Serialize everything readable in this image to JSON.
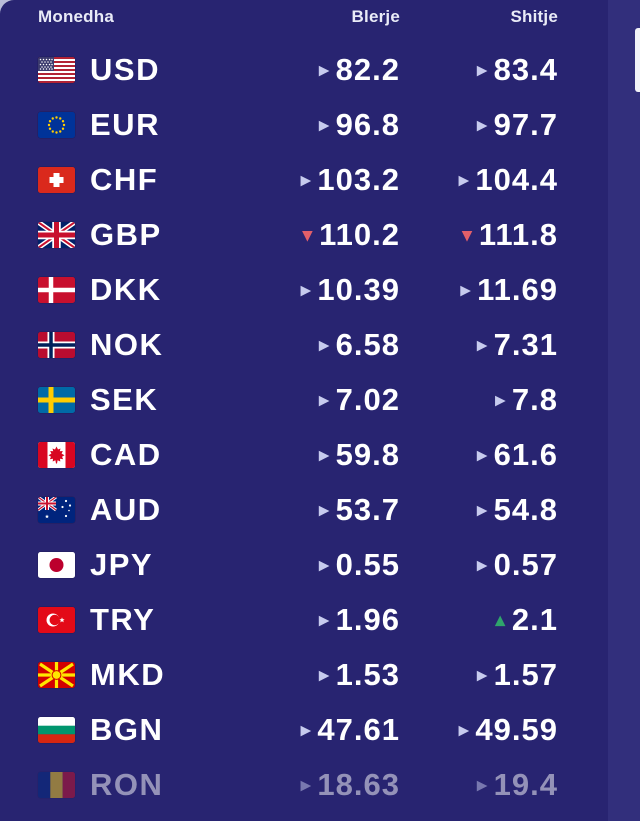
{
  "header": {
    "currency": "Monedha",
    "buy": "Blerje",
    "sell": "Shitje"
  },
  "colors": {
    "background": "#282471",
    "right_strip": "#322f7c",
    "row_text": "#ffffff",
    "trend_neutral": "#c7cbee",
    "trend_down": "#e25f69",
    "trend_up": "#2fa56b"
  },
  "icons": {
    "trend_neutral": "right-triangle-icon",
    "trend_down": "down-triangle-icon",
    "trend_up": "up-triangle-icon"
  },
  "rows": [
    {
      "code": "USD",
      "flag": "usd-flag",
      "buy": "82.2",
      "buy_trend": "neutral",
      "sell": "83.4",
      "sell_trend": "neutral",
      "faded": false
    },
    {
      "code": "EUR",
      "flag": "eur-flag",
      "buy": "96.8",
      "buy_trend": "neutral",
      "sell": "97.7",
      "sell_trend": "neutral",
      "faded": false
    },
    {
      "code": "CHF",
      "flag": "chf-flag",
      "buy": "103.2",
      "buy_trend": "neutral",
      "sell": "104.4",
      "sell_trend": "neutral",
      "faded": false
    },
    {
      "code": "GBP",
      "flag": "gbp-flag",
      "buy": "110.2",
      "buy_trend": "down",
      "sell": "111.8",
      "sell_trend": "down",
      "faded": false
    },
    {
      "code": "DKK",
      "flag": "dkk-flag",
      "buy": "10.39",
      "buy_trend": "neutral",
      "sell": "11.69",
      "sell_trend": "neutral",
      "faded": false
    },
    {
      "code": "NOK",
      "flag": "nok-flag",
      "buy": "6.58",
      "buy_trend": "neutral",
      "sell": "7.31",
      "sell_trend": "neutral",
      "faded": false
    },
    {
      "code": "SEK",
      "flag": "sek-flag",
      "buy": "7.02",
      "buy_trend": "neutral",
      "sell": "7.8",
      "sell_trend": "neutral",
      "faded": false
    },
    {
      "code": "CAD",
      "flag": "cad-flag",
      "buy": "59.8",
      "buy_trend": "neutral",
      "sell": "61.6",
      "sell_trend": "neutral",
      "faded": false
    },
    {
      "code": "AUD",
      "flag": "aud-flag",
      "buy": "53.7",
      "buy_trend": "neutral",
      "sell": "54.8",
      "sell_trend": "neutral",
      "faded": false
    },
    {
      "code": "JPY",
      "flag": "jpy-flag",
      "buy": "0.55",
      "buy_trend": "neutral",
      "sell": "0.57",
      "sell_trend": "neutral",
      "faded": false
    },
    {
      "code": "TRY",
      "flag": "try-flag",
      "buy": "1.96",
      "buy_trend": "neutral",
      "sell": "2.1",
      "sell_trend": "up",
      "faded": false
    },
    {
      "code": "MKD",
      "flag": "mkd-flag",
      "buy": "1.53",
      "buy_trend": "neutral",
      "sell": "1.57",
      "sell_trend": "neutral",
      "faded": false
    },
    {
      "code": "BGN",
      "flag": "bgn-flag",
      "buy": "47.61",
      "buy_trend": "neutral",
      "sell": "49.59",
      "sell_trend": "neutral",
      "faded": false
    },
    {
      "code": "RON",
      "flag": "ron-flag",
      "buy": "18.63",
      "buy_trend": "neutral",
      "sell": "19.4",
      "sell_trend": "neutral",
      "faded": true
    }
  ]
}
